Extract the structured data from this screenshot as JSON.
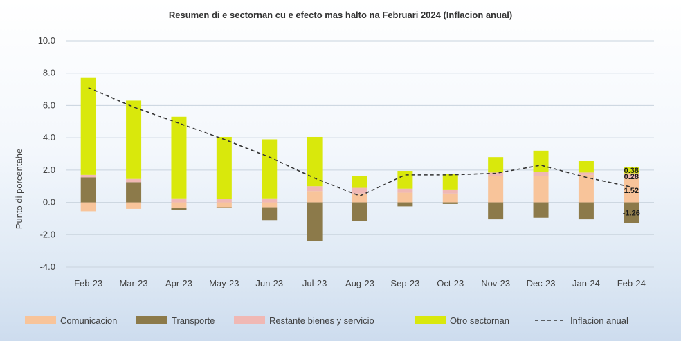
{
  "chart_data": {
    "type": "bar",
    "subtype": "stacked",
    "title": "Resumen di e sectornan cu e efecto mas halto na Februari 2024 (Inflacion anual)",
    "xlabel": "",
    "ylabel": "Punto di porcentahe",
    "ylim": [
      -4.0,
      10.0
    ],
    "ytick_step": 2.0,
    "ytick_labels": [
      "-4.0",
      "-2.0",
      "0.0",
      "2.0",
      "4.0",
      "6.0",
      "8.0",
      "10.0"
    ],
    "grid": true,
    "legend_position": "bottom",
    "categories": [
      "Feb-23",
      "Mar-23",
      "Apr-23",
      "May-23",
      "Jun-23",
      "Jul-23",
      "Aug-23",
      "Sep-23",
      "Oct-23",
      "Nov-23",
      "Dec-23",
      "Jan-24",
      "Feb-24"
    ],
    "series": [
      {
        "name": "Comunicacion",
        "kind": "bar",
        "color": "#f8c49a",
        "values": [
          -0.55,
          -0.4,
          -0.35,
          -0.3,
          -0.3,
          0.7,
          0.55,
          0.6,
          0.55,
          1.65,
          1.65,
          1.7,
          1.52
        ]
      },
      {
        "name": "Transporte",
        "kind": "bar",
        "color": "#8c7a4a",
        "values": [
          1.55,
          1.25,
          -0.1,
          -0.05,
          -0.8,
          -2.4,
          -1.15,
          -0.25,
          -0.1,
          -1.05,
          -0.95,
          -1.05,
          -1.26
        ]
      },
      {
        "name": "Restante bienes y servicio",
        "kind": "bar",
        "color": "#f0b8b4",
        "values": [
          0.15,
          0.2,
          0.25,
          0.2,
          0.25,
          0.3,
          0.35,
          0.25,
          0.25,
          0.2,
          0.25,
          0.15,
          0.28
        ]
      },
      {
        "name": "Otro sectornan",
        "kind": "bar",
        "color": "#d9e80c",
        "values": [
          6.0,
          4.85,
          5.05,
          3.85,
          3.65,
          3.05,
          0.75,
          1.1,
          0.95,
          0.95,
          1.3,
          0.7,
          0.38
        ]
      },
      {
        "name": "Inflacion anual",
        "kind": "line",
        "color": "#333333",
        "style": "dashed",
        "values": [
          7.1,
          5.9,
          4.9,
          3.9,
          2.8,
          1.5,
          0.4,
          1.7,
          1.7,
          1.8,
          2.3,
          1.55,
          0.95
        ]
      }
    ],
    "data_labels": {
      "category": "Feb-24",
      "series_order": [
        "Otro sectornan",
        "Restante bienes y servicio",
        "Comunicacion",
        "Transporte"
      ],
      "texts": [
        "0.38",
        "0.28",
        "1.52",
        "-1.26"
      ]
    }
  }
}
